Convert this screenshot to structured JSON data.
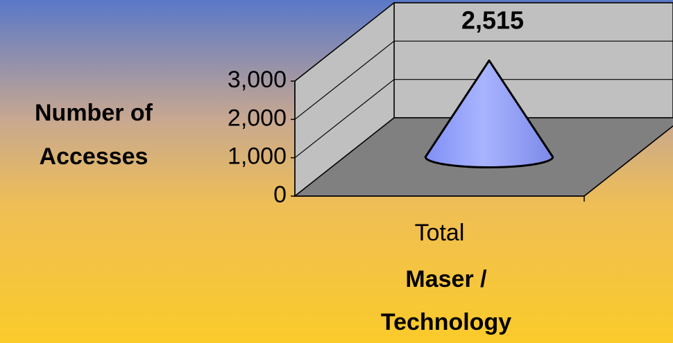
{
  "chart_data": {
    "type": "cone",
    "categories": [
      "Total"
    ],
    "values": [
      2515
    ],
    "value_labels": [
      "2,515"
    ],
    "color": "#8c9cff",
    "ylabel": [
      "Number of",
      "Accesses"
    ],
    "xlabel": [
      "Maser /",
      "Technology"
    ],
    "ylim": [
      0,
      3000
    ],
    "yticks": [
      0,
      {
        "value": 1000,
        "label": "1,000"
      },
      {
        "value": 2000,
        "label": "2,000"
      },
      {
        "value": 3000,
        "label": "3,000"
      }
    ],
    "grid": true
  }
}
